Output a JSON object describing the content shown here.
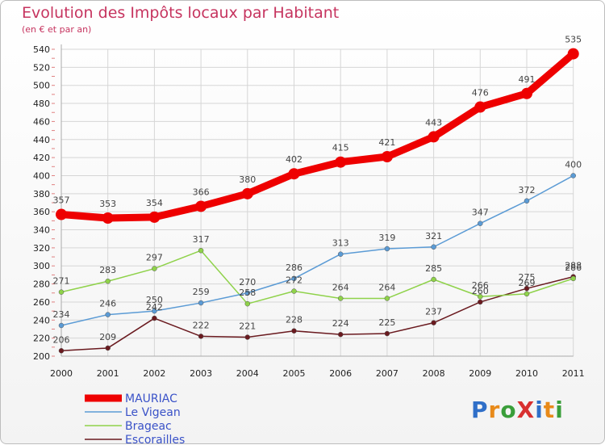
{
  "title": "Evolution des Impôts locaux par Habitant",
  "subtitle": "(en € et par an)",
  "logo": "ProXiti",
  "chart_data": {
    "type": "line",
    "x": [
      "2000",
      "2001",
      "2002",
      "2003",
      "2004",
      "2005",
      "2006",
      "2007",
      "2008",
      "2009",
      "2010",
      "2011"
    ],
    "ylim": [
      200,
      540
    ],
    "yticks": [
      200,
      220,
      240,
      260,
      280,
      300,
      320,
      340,
      360,
      380,
      400,
      420,
      440,
      460,
      480,
      500,
      520,
      540
    ],
    "grid": true,
    "legend_position": "bottom-left",
    "series": [
      {
        "name": "MAURIAC",
        "color": "#ee0000",
        "values": [
          357,
          353,
          354,
          366,
          380,
          402,
          415,
          421,
          443,
          476,
          491,
          535
        ]
      },
      {
        "name": "Le Vigean",
        "color": "#5b9bd5",
        "values": [
          234,
          246,
          250,
          259,
          270,
          286,
          313,
          319,
          321,
          347,
          372,
          400
        ]
      },
      {
        "name": "Brageac",
        "color": "#8fd24a",
        "values": [
          271,
          283,
          297,
          317,
          258,
          272,
          264,
          264,
          285,
          266,
          269,
          286
        ]
      },
      {
        "name": "Escorailles",
        "color": "#6a1a1f",
        "values": [
          206,
          209,
          242,
          222,
          221,
          228,
          224,
          225,
          237,
          260,
          275,
          288
        ]
      }
    ]
  }
}
